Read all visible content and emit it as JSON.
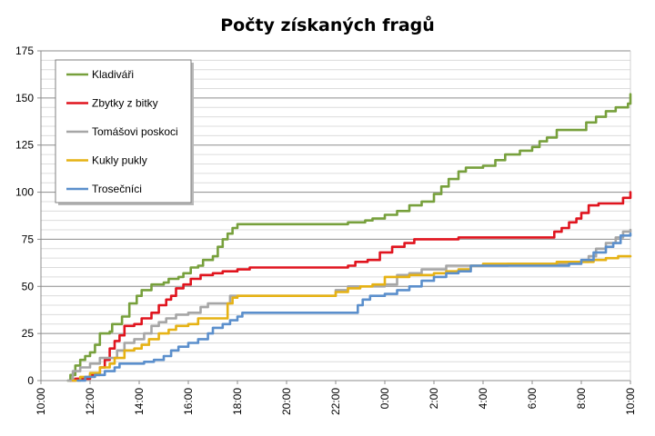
{
  "chart_data": {
    "type": "line",
    "title": "Počty získaných fragů",
    "xlabel": "",
    "ylabel": "",
    "ylim": [
      0,
      175
    ],
    "yticks": [
      0,
      25,
      50,
      75,
      100,
      125,
      150,
      175
    ],
    "xticks": [
      "10:00",
      "12:00",
      "14:00",
      "16:00",
      "18:00",
      "20:00",
      "22:00",
      "0:00",
      "2:00",
      "4:00",
      "6:00",
      "8:00",
      "10:00"
    ],
    "x_unit": "hours since first tick",
    "xlim": [
      0,
      24
    ],
    "grid": true,
    "legend_position": "top-left",
    "series": [
      {
        "name": "Kladiváři",
        "color": "#77a03c",
        "points": [
          [
            1.1,
            0
          ],
          [
            1.2,
            3
          ],
          [
            1.4,
            8
          ],
          [
            1.6,
            11
          ],
          [
            1.8,
            13
          ],
          [
            2.0,
            15
          ],
          [
            2.2,
            19
          ],
          [
            2.4,
            25
          ],
          [
            2.8,
            26
          ],
          [
            2.9,
            30
          ],
          [
            3.3,
            34
          ],
          [
            3.6,
            41
          ],
          [
            3.9,
            45
          ],
          [
            4.1,
            48
          ],
          [
            4.5,
            51
          ],
          [
            5.0,
            52
          ],
          [
            5.2,
            54
          ],
          [
            5.6,
            55
          ],
          [
            5.8,
            57
          ],
          [
            6.1,
            60
          ],
          [
            6.4,
            61
          ],
          [
            6.6,
            64
          ],
          [
            7.0,
            66
          ],
          [
            7.2,
            71
          ],
          [
            7.4,
            75
          ],
          [
            7.6,
            78
          ],
          [
            7.8,
            81
          ],
          [
            8.0,
            83
          ],
          [
            8.5,
            83
          ],
          [
            9.5,
            83
          ],
          [
            11.0,
            83
          ],
          [
            12.5,
            84
          ],
          [
            13.2,
            85
          ],
          [
            13.5,
            86
          ],
          [
            14.0,
            88
          ],
          [
            14.5,
            90
          ],
          [
            15.0,
            93
          ],
          [
            15.5,
            95
          ],
          [
            16.0,
            99
          ],
          [
            16.3,
            103
          ],
          [
            16.6,
            107
          ],
          [
            17.0,
            111
          ],
          [
            17.3,
            113
          ],
          [
            18.0,
            114
          ],
          [
            18.5,
            117
          ],
          [
            18.9,
            120
          ],
          [
            19.5,
            122
          ],
          [
            20.0,
            124
          ],
          [
            20.3,
            127
          ],
          [
            20.6,
            129
          ],
          [
            21.0,
            133
          ],
          [
            21.5,
            133
          ],
          [
            22.0,
            133
          ],
          [
            22.2,
            137
          ],
          [
            22.6,
            140
          ],
          [
            23.0,
            143
          ],
          [
            23.4,
            145
          ],
          [
            23.9,
            147
          ],
          [
            24.0,
            152
          ]
        ]
      },
      {
        "name": "Zbytky z bitky",
        "color": "#e0141e",
        "points": [
          [
            1.2,
            0
          ],
          [
            1.4,
            1
          ],
          [
            2.0,
            3
          ],
          [
            2.4,
            7
          ],
          [
            2.6,
            11
          ],
          [
            2.8,
            17
          ],
          [
            3.0,
            21
          ],
          [
            3.2,
            24
          ],
          [
            3.4,
            29
          ],
          [
            3.8,
            30
          ],
          [
            4.1,
            33
          ],
          [
            4.5,
            36
          ],
          [
            4.8,
            40
          ],
          [
            5.1,
            43
          ],
          [
            5.3,
            45
          ],
          [
            5.5,
            49
          ],
          [
            5.8,
            51
          ],
          [
            6.1,
            54
          ],
          [
            6.5,
            56
          ],
          [
            7.0,
            57
          ],
          [
            7.4,
            58
          ],
          [
            8.0,
            59
          ],
          [
            8.5,
            60
          ],
          [
            10.0,
            60
          ],
          [
            12.0,
            60
          ],
          [
            12.5,
            61
          ],
          [
            12.8,
            63
          ],
          [
            13.3,
            64
          ],
          [
            13.8,
            68
          ],
          [
            14.3,
            71
          ],
          [
            14.8,
            73
          ],
          [
            15.2,
            75
          ],
          [
            16.0,
            75
          ],
          [
            17.0,
            76
          ],
          [
            18.0,
            76
          ],
          [
            19.5,
            76
          ],
          [
            20.0,
            76
          ],
          [
            20.7,
            76
          ],
          [
            20.9,
            79
          ],
          [
            21.2,
            81
          ],
          [
            21.5,
            84
          ],
          [
            21.8,
            86
          ],
          [
            22.0,
            89
          ],
          [
            22.3,
            93
          ],
          [
            22.7,
            94
          ],
          [
            23.0,
            94
          ],
          [
            23.4,
            94
          ],
          [
            23.7,
            97
          ],
          [
            24.0,
            100
          ]
        ]
      },
      {
        "name": "Tomášovi poskoci",
        "color": "#a6a6a6",
        "points": [
          [
            1.1,
            0
          ],
          [
            1.3,
            5
          ],
          [
            1.6,
            7
          ],
          [
            2.0,
            9
          ],
          [
            2.4,
            12
          ],
          [
            2.8,
            12
          ],
          [
            3.1,
            16
          ],
          [
            3.4,
            20
          ],
          [
            3.8,
            22
          ],
          [
            4.2,
            25
          ],
          [
            4.5,
            29
          ],
          [
            4.8,
            31
          ],
          [
            5.1,
            33
          ],
          [
            5.5,
            35
          ],
          [
            6.0,
            36
          ],
          [
            6.5,
            39
          ],
          [
            6.8,
            41
          ],
          [
            7.4,
            41
          ],
          [
            7.7,
            45
          ],
          [
            8.0,
            45
          ],
          [
            9.0,
            45
          ],
          [
            11.0,
            45
          ],
          [
            12.0,
            48
          ],
          [
            12.5,
            50
          ],
          [
            14.0,
            51
          ],
          [
            14.5,
            56
          ],
          [
            15.0,
            57
          ],
          [
            15.5,
            59
          ],
          [
            16.0,
            59
          ],
          [
            16.5,
            61
          ],
          [
            17.0,
            61
          ],
          [
            18.0,
            61
          ],
          [
            19.0,
            62
          ],
          [
            20.0,
            62
          ],
          [
            21.0,
            62
          ],
          [
            21.5,
            63
          ],
          [
            22.0,
            63
          ],
          [
            22.3,
            66
          ],
          [
            22.6,
            70
          ],
          [
            23.0,
            73
          ],
          [
            23.4,
            76
          ],
          [
            23.7,
            79
          ],
          [
            24.0,
            80
          ]
        ]
      },
      {
        "name": "Kukly pukly",
        "color": "#e6b214",
        "points": [
          [
            1.3,
            0
          ],
          [
            1.6,
            2
          ],
          [
            2.0,
            4
          ],
          [
            2.4,
            7
          ],
          [
            2.8,
            9
          ],
          [
            3.0,
            12
          ],
          [
            3.4,
            16
          ],
          [
            3.8,
            17
          ],
          [
            4.1,
            19
          ],
          [
            4.4,
            22
          ],
          [
            4.8,
            25
          ],
          [
            5.2,
            27
          ],
          [
            5.5,
            29
          ],
          [
            6.0,
            30
          ],
          [
            6.4,
            33
          ],
          [
            7.0,
            33
          ],
          [
            7.4,
            33
          ],
          [
            7.6,
            41
          ],
          [
            7.8,
            44
          ],
          [
            8.0,
            45
          ],
          [
            9.0,
            45
          ],
          [
            10.0,
            45
          ],
          [
            11.0,
            45
          ],
          [
            12.0,
            47
          ],
          [
            12.5,
            49
          ],
          [
            13.0,
            50
          ],
          [
            13.5,
            51
          ],
          [
            14.0,
            55
          ],
          [
            14.5,
            55
          ],
          [
            15.0,
            56
          ],
          [
            16.0,
            57
          ],
          [
            16.5,
            58
          ],
          [
            17.0,
            59
          ],
          [
            17.5,
            61
          ],
          [
            18.0,
            62
          ],
          [
            19.0,
            62
          ],
          [
            20.0,
            62
          ],
          [
            21.0,
            63
          ],
          [
            22.0,
            63
          ],
          [
            22.5,
            64
          ],
          [
            23.0,
            65
          ],
          [
            23.5,
            66
          ],
          [
            24.0,
            66
          ]
        ]
      },
      {
        "name": "Trosečníci",
        "color": "#5b8fcc",
        "points": [
          [
            1.5,
            0
          ],
          [
            1.8,
            2
          ],
          [
            2.2,
            3
          ],
          [
            2.6,
            5
          ],
          [
            3.0,
            7
          ],
          [
            3.2,
            9
          ],
          [
            3.8,
            9
          ],
          [
            4.2,
            10
          ],
          [
            4.6,
            11
          ],
          [
            5.0,
            13
          ],
          [
            5.3,
            16
          ],
          [
            5.6,
            18
          ],
          [
            6.0,
            20
          ],
          [
            6.4,
            22
          ],
          [
            6.8,
            25
          ],
          [
            7.0,
            28
          ],
          [
            7.4,
            30
          ],
          [
            7.7,
            32
          ],
          [
            8.0,
            34
          ],
          [
            8.2,
            36
          ],
          [
            9.0,
            36
          ],
          [
            10.0,
            36
          ],
          [
            11.0,
            36
          ],
          [
            12.0,
            36
          ],
          [
            12.7,
            36
          ],
          [
            12.9,
            40
          ],
          [
            13.1,
            43
          ],
          [
            13.4,
            45
          ],
          [
            14.0,
            46
          ],
          [
            14.5,
            48
          ],
          [
            15.0,
            50
          ],
          [
            15.5,
            53
          ],
          [
            16.0,
            55
          ],
          [
            16.5,
            57
          ],
          [
            17.0,
            58
          ],
          [
            17.5,
            61
          ],
          [
            18.0,
            61
          ],
          [
            19.0,
            61
          ],
          [
            20.0,
            61
          ],
          [
            21.0,
            61
          ],
          [
            21.5,
            62
          ],
          [
            22.0,
            64
          ],
          [
            22.5,
            68
          ],
          [
            23.0,
            71
          ],
          [
            23.3,
            73
          ],
          [
            23.6,
            77
          ],
          [
            24.0,
            78
          ]
        ]
      }
    ]
  }
}
